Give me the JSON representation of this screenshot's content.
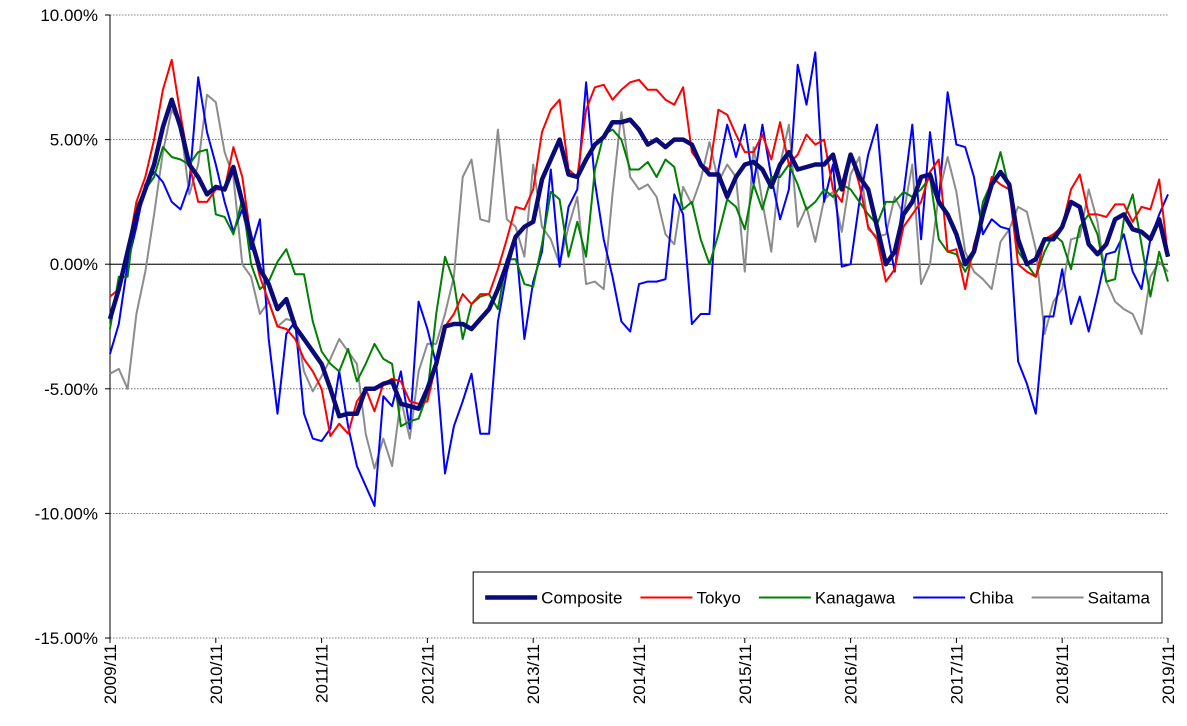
{
  "chart_data": {
    "type": "line",
    "categories": [
      "2009/11",
      null,
      null,
      null,
      null,
      null,
      null,
      null,
      null,
      null,
      null,
      null,
      "2010/11",
      null,
      null,
      null,
      null,
      null,
      null,
      null,
      null,
      null,
      null,
      null,
      "2011/11",
      null,
      null,
      null,
      null,
      null,
      null,
      null,
      null,
      null,
      null,
      null,
      "2012/11",
      null,
      null,
      null,
      null,
      null,
      null,
      null,
      null,
      null,
      null,
      null,
      "2013/11",
      null,
      null,
      null,
      null,
      null,
      null,
      null,
      null,
      null,
      null,
      null,
      "2014/11",
      null,
      null,
      null,
      null,
      null,
      null,
      null,
      null,
      null,
      null,
      null,
      "2015/11",
      null,
      null,
      null,
      null,
      null,
      null,
      null,
      null,
      null,
      null,
      null,
      "2016/11",
      null,
      null,
      null,
      null,
      null,
      null,
      null,
      null,
      null,
      null,
      null,
      "2017/11",
      null,
      null,
      null,
      null,
      null,
      null,
      null,
      null,
      null,
      null,
      null,
      "2018/11",
      null,
      null,
      null,
      null,
      null,
      null,
      null,
      null,
      null,
      null,
      null,
      "2019/11"
    ],
    "series": [
      {
        "name": "Composite",
        "color": "#0a0a78",
        "values": [
          -2.2,
          -1.0,
          0.5,
          2.0,
          3.0,
          4.0,
          5.5,
          6.6,
          5.5,
          4.0,
          3.5,
          2.8,
          3.1,
          3.0,
          3.9,
          2.5,
          1.0,
          -0.2,
          -0.8,
          -1.8,
          -1.4,
          -2.5,
          -3.0,
          -3.5,
          -4.0,
          -5.0,
          -6.1,
          -6.0,
          -6.0,
          -5.0,
          -5.0,
          -4.8,
          -4.7,
          -5.6,
          -5.7,
          -5.8,
          -5.0,
          -4.0,
          -2.5,
          -2.4,
          -2.4,
          -2.6,
          -2.2,
          -1.8,
          -1.0,
          0.0,
          1.1,
          1.5,
          1.7,
          3.4,
          4.2,
          5.0,
          3.6,
          3.5,
          4.2,
          4.8,
          5.1,
          5.7,
          5.7,
          5.8,
          5.4,
          4.8,
          5.0,
          4.7,
          5.0,
          5.0,
          4.8,
          4.0,
          3.6,
          3.6,
          2.7,
          3.5,
          4.0,
          4.1,
          3.8,
          3.1,
          4.0,
          4.5,
          3.8,
          3.9,
          4.0,
          4.0,
          4.4,
          3.0,
          4.4,
          3.5,
          3.0,
          1.5,
          0.0,
          0.5,
          2.0,
          2.5,
          3.5,
          3.6,
          2.5,
          2.0,
          1.2,
          0.0,
          0.5,
          2.0,
          3.2,
          3.7,
          3.2,
          1.0,
          0.0,
          0.2,
          1.0,
          1.0,
          1.5,
          2.5,
          2.3,
          0.8,
          0.4,
          0.8,
          1.8,
          2.0,
          1.4,
          1.3,
          1.0,
          1.8,
          0.3
        ]
      },
      {
        "name": "Tokyo",
        "color": "#ff0000",
        "values": [
          -1.3,
          -1.0,
          0.5,
          2.5,
          3.5,
          5.0,
          7.0,
          8.2,
          6.0,
          4.0,
          2.5,
          2.5,
          3.0,
          3.0,
          4.7,
          3.5,
          1.0,
          -0.5,
          -1.5,
          -2.5,
          -2.6,
          -3.0,
          -3.8,
          -4.3,
          -5.0,
          -6.9,
          -6.4,
          -6.8,
          -5.5,
          -5.0,
          -5.9,
          -4.8,
          -4.6,
          -4.7,
          -5.5,
          -5.6,
          -5.5,
          -4.0,
          -2.5,
          -2.0,
          -1.2,
          -1.6,
          -1.2,
          -1.2,
          -0.2,
          1.0,
          2.3,
          2.2,
          3.0,
          5.3,
          6.2,
          6.6,
          3.8,
          3.5,
          6.2,
          7.1,
          7.2,
          6.6,
          7.0,
          7.3,
          7.4,
          7.0,
          7.0,
          6.6,
          6.4,
          7.1,
          4.5,
          4.0,
          3.8,
          6.2,
          6.0,
          5.2,
          4.5,
          4.5,
          5.2,
          4.2,
          5.7,
          4.0,
          4.4,
          5.2,
          4.8,
          5.0,
          3.0,
          2.5,
          4.4,
          3.2,
          1.5,
          1.0,
          -0.7,
          -0.2,
          1.5,
          2.0,
          2.5,
          3.7,
          4.2,
          0.5,
          0.6,
          -1.0,
          0.8,
          2.0,
          3.5,
          3.2,
          3.0,
          0.0,
          -0.3,
          -0.5,
          1.0,
          1.2,
          1.5,
          3.0,
          3.6,
          2.0,
          2.0,
          1.9,
          2.4,
          2.4,
          1.7,
          2.3,
          2.2,
          3.4,
          0.3
        ]
      },
      {
        "name": "Kanagawa",
        "color": "#008000",
        "values": [
          -2.6,
          -0.5,
          -0.5,
          2.3,
          3.0,
          3.5,
          4.7,
          4.3,
          4.2,
          4.0,
          4.5,
          4.6,
          2.0,
          1.9,
          1.2,
          2.6,
          0.0,
          -1.0,
          -0.7,
          0.1,
          0.6,
          -0.4,
          -0.4,
          -2.3,
          -3.5,
          -4.0,
          -4.3,
          -3.4,
          -4.7,
          -4.0,
          -3.2,
          -3.8,
          -4.0,
          -6.5,
          -6.3,
          -6.2,
          -5.2,
          -2.0,
          0.3,
          -0.7,
          -3.0,
          -1.6,
          -1.3,
          -1.2,
          -1.8,
          0.2,
          0.2,
          -0.8,
          -0.9,
          0.8,
          2.9,
          2.6,
          0.3,
          1.7,
          0.3,
          3.8,
          5.2,
          5.4,
          5.0,
          3.8,
          3.8,
          4.1,
          3.5,
          4.2,
          3.9,
          2.2,
          2.5,
          1.0,
          0.0,
          1.2,
          2.6,
          2.3,
          1.4,
          3.2,
          2.2,
          3.5,
          3.5,
          4.0,
          3.2,
          2.2,
          2.5,
          3.0,
          2.7,
          3.2,
          3.0,
          2.5,
          2.0,
          1.6,
          2.5,
          2.5,
          2.9,
          2.7,
          3.0,
          3.5,
          1.0,
          0.5,
          0.4,
          -0.3,
          0.4,
          2.5,
          3.3,
          4.5,
          3.0,
          0.5,
          0.0,
          -0.5,
          0.5,
          1.2,
          0.9,
          -0.2,
          1.5,
          2.0,
          1.2,
          -0.7,
          -0.6,
          1.8,
          2.8,
          0.8,
          -1.3,
          0.5,
          -0.7
        ]
      },
      {
        "name": "Chiba",
        "color": "#0000ff",
        "values": [
          -3.6,
          -2.4,
          0.0,
          1.5,
          3.2,
          3.7,
          3.3,
          2.5,
          2.2,
          3.2,
          7.5,
          5.3,
          4.0,
          2.5,
          1.3,
          2.2,
          0.6,
          1.8,
          -3.0,
          -6.0,
          -2.8,
          -2.3,
          -6.0,
          -7.0,
          -7.1,
          -6.6,
          -4.3,
          -6.5,
          -8.1,
          -8.9,
          -9.7,
          -5.3,
          -5.7,
          -4.3,
          -6.6,
          -1.5,
          -2.6,
          -4.0,
          -8.4,
          -6.5,
          -5.5,
          -4.4,
          -6.8,
          -6.8,
          -2.3,
          -0.3,
          1.0,
          -3.0,
          -0.7,
          0.5,
          3.8,
          -0.1,
          2.3,
          3.0,
          7.3,
          3.3,
          1.0,
          -0.5,
          -2.3,
          -2.7,
          -0.8,
          -0.7,
          -0.7,
          -0.6,
          2.8,
          2.0,
          -2.4,
          -2.0,
          -2.0,
          3.8,
          5.6,
          4.3,
          5.6,
          3.2,
          5.6,
          3.5,
          1.8,
          3.0,
          8.0,
          6.4,
          8.5,
          2.5,
          4.0,
          -0.1,
          0.0,
          2.5,
          4.4,
          5.6,
          1.6,
          -0.3,
          2.8,
          5.6,
          1.0,
          5.3,
          2.5,
          6.9,
          4.8,
          4.7,
          3.5,
          1.2,
          1.8,
          1.5,
          1.4,
          -3.9,
          -4.8,
          -6.0,
          -2.1,
          -2.1,
          -0.2,
          -2.4,
          -1.3,
          -2.7,
          -1.2,
          0.4,
          0.5,
          1.2,
          -0.3,
          -1.0,
          1.0,
          2.0,
          2.8
        ]
      },
      {
        "name": "Saitama",
        "color": "#8c8c8c",
        "values": [
          -4.4,
          -4.2,
          -5.0,
          -2.0,
          -0.3,
          2.0,
          4.5,
          6.2,
          5.6,
          2.8,
          4.0,
          6.8,
          6.5,
          4.5,
          3.5,
          0.0,
          -0.5,
          -2.0,
          -1.5,
          -2.5,
          -2.2,
          -2.3,
          -4.3,
          -5.1,
          -4.5,
          -3.8,
          -3.0,
          -3.5,
          -4.0,
          -6.8,
          -8.2,
          -7.0,
          -8.1,
          -5.4,
          -7.0,
          -4.3,
          -3.2,
          -3.2,
          -2.0,
          -0.5,
          3.5,
          4.2,
          1.8,
          1.7,
          5.4,
          1.8,
          1.5,
          0.3,
          4.0,
          1.5,
          1.0,
          0.0,
          1.5,
          2.7,
          -0.8,
          -0.7,
          -1.0,
          2.8,
          6.1,
          3.5,
          3.0,
          3.2,
          2.7,
          1.2,
          0.8,
          3.1,
          2.4,
          3.4,
          4.9,
          3.3,
          4.0,
          3.5,
          -0.3,
          4.7,
          2.5,
          0.5,
          4.0,
          5.6,
          1.5,
          2.3,
          0.9,
          2.6,
          2.9,
          1.3,
          3.6,
          4.3,
          1.4,
          1.1,
          1.2,
          2.7,
          2.0,
          4.0,
          -0.8,
          0.0,
          2.8,
          4.3,
          2.9,
          0.5,
          -0.3,
          -0.6,
          -1.0,
          0.9,
          1.4,
          2.3,
          2.1,
          0.6,
          -2.8,
          -1.5,
          -1.0,
          1.0,
          1.1,
          3.0,
          1.7,
          -0.7,
          -1.5,
          -1.8,
          -2.0,
          -2.8,
          -0.5,
          0.1,
          -0.3
        ]
      }
    ],
    "ylim": [
      -15,
      10
    ],
    "yticks": [
      {
        "value": -15,
        "label": "-15.00%"
      },
      {
        "value": -10,
        "label": "-10.00%"
      },
      {
        "value": -5,
        "label": "-5.00%"
      },
      {
        "value": 0,
        "label": "0.00%"
      },
      {
        "value": 5,
        "label": "5.00%"
      },
      {
        "value": 10,
        "label": "10.00%"
      }
    ],
    "grid": true,
    "legend": "lower right"
  }
}
